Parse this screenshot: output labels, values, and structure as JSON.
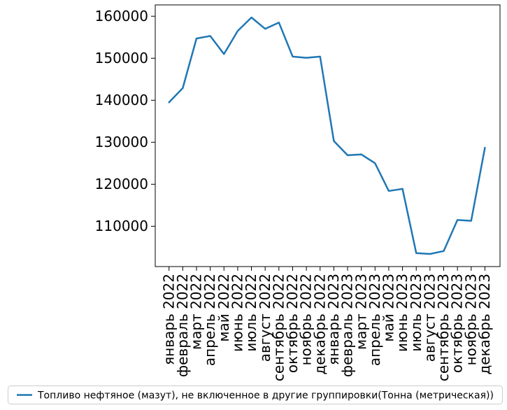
{
  "chart_data": {
    "type": "line",
    "title": "",
    "xlabel": "",
    "ylabel": "",
    "grid": false,
    "legend_position": "bottom",
    "ylim": [
      100400,
      162700
    ],
    "yticks": [
      110000,
      120000,
      130000,
      140000,
      150000,
      160000
    ],
    "categories": [
      "январь 2022",
      "февраль 2022",
      "март 2022",
      "апрель 2022",
      "май 2022",
      "июнь 2022",
      "июль 2022",
      "август 2022",
      "сентябрь 2022",
      "октябрь 2022",
      "ноябрь 2022",
      "декабрь 2022",
      "январь 2023",
      "февраль 2023",
      "март 2023",
      "апрель 2023",
      "май 2023",
      "июнь 2023",
      "июль 2023",
      "август 2023",
      "сентябрь 2023",
      "октябрь 2023",
      "ноябрь 2023",
      "декабрь 2023"
    ],
    "series": [
      {
        "name": "Топливо нефтяное (мазут), не включенное в другие группировки(Тонна (метрическая))",
        "color": "#1f77b4",
        "values": [
          139500,
          142900,
          154700,
          155300,
          151000,
          156500,
          159700,
          157000,
          158500,
          150400,
          150100,
          150400,
          130300,
          126900,
          127100,
          125000,
          118400,
          118900,
          103600,
          103400,
          104100,
          111500,
          111300,
          128700
        ]
      }
    ],
    "colors": {
      "line": "#1f77b4",
      "axis": "#000000",
      "legend_border": "#cccccc",
      "background": "#ffffff"
    }
  }
}
